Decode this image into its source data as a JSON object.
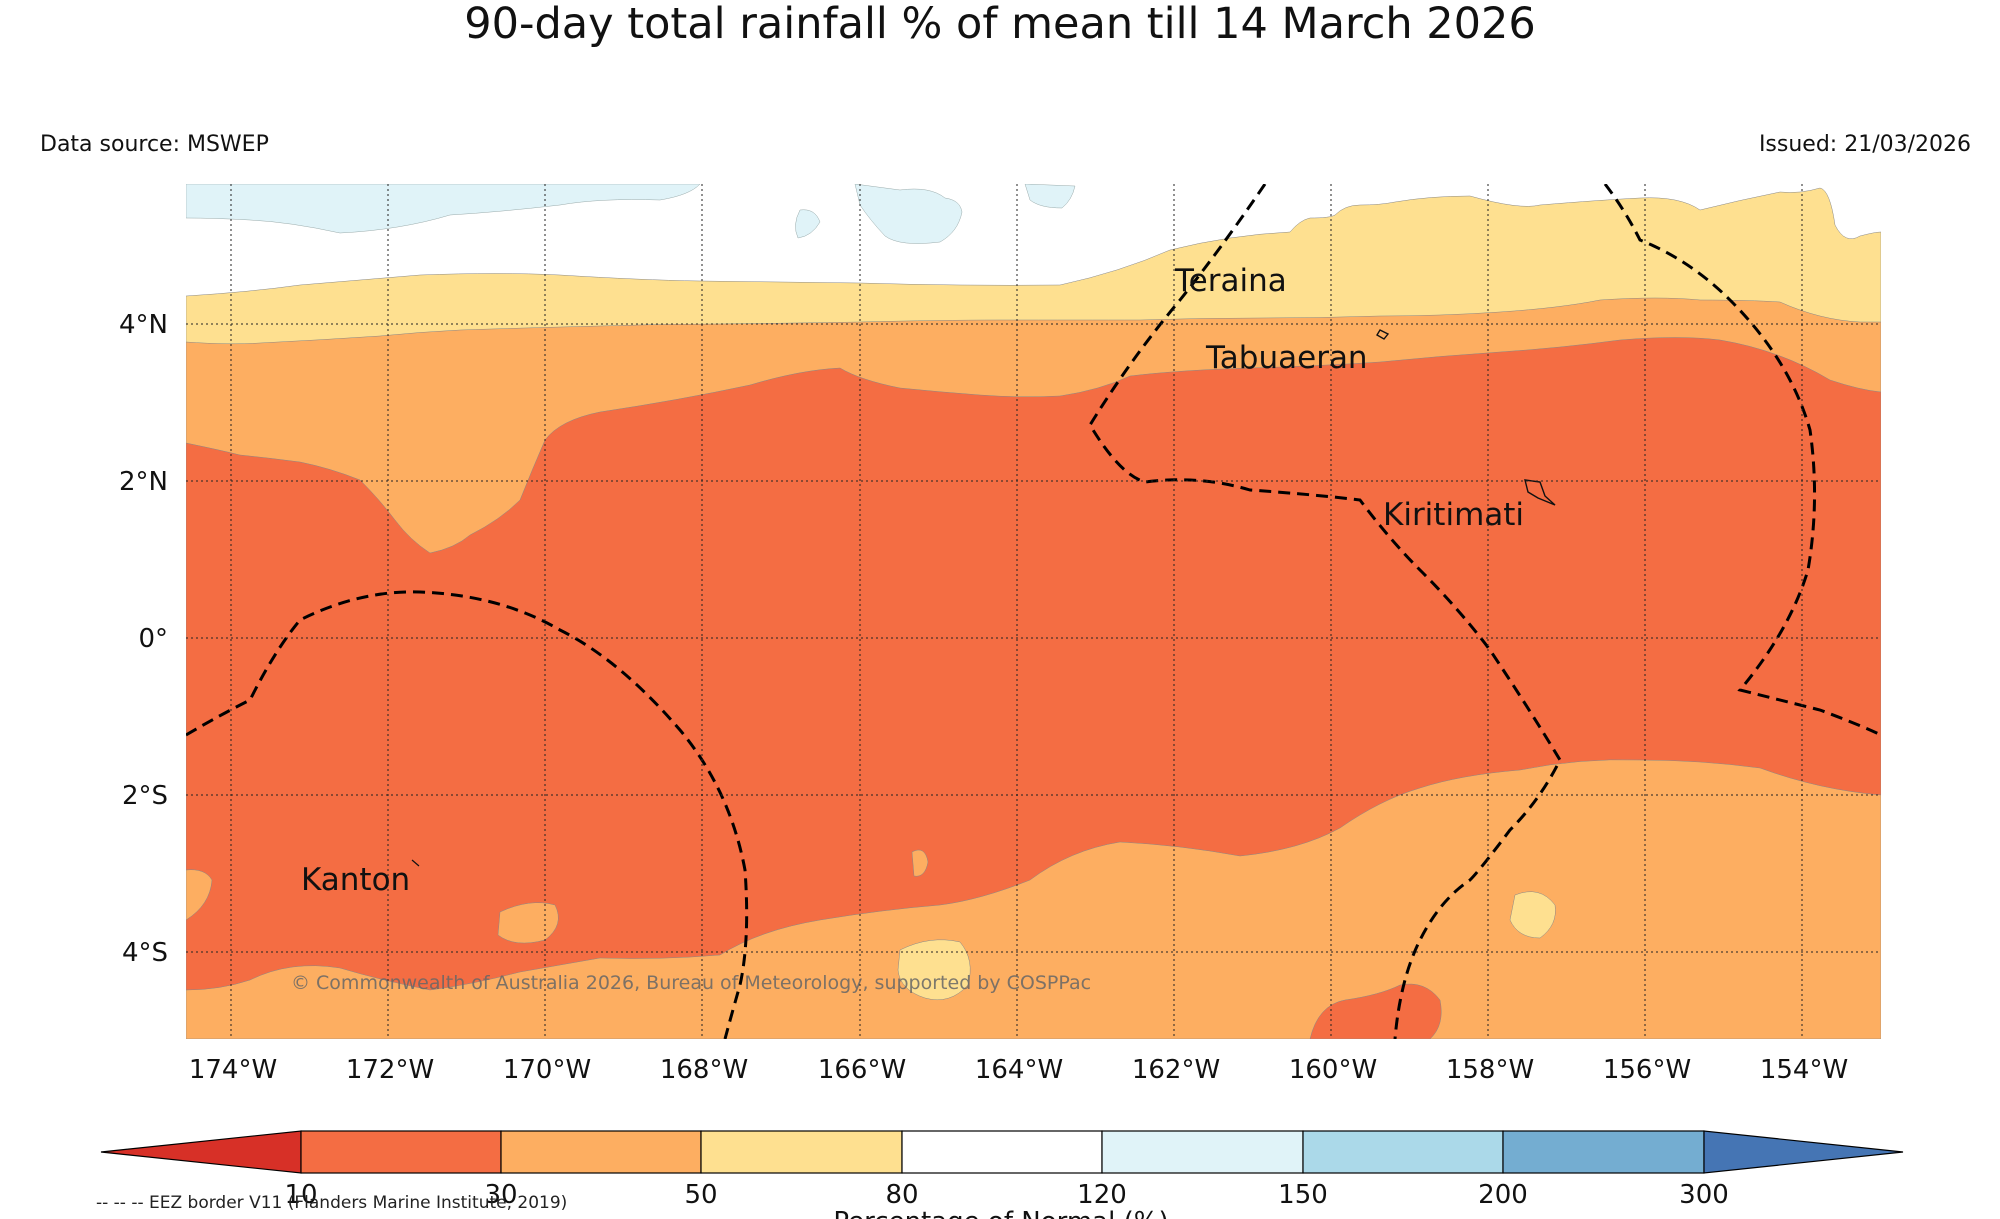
{
  "header": {
    "title": "90-day total rainfall % of mean till 14 March 2026",
    "data_source": "Data source: MSWEP",
    "issued": "Issued: 21/03/2026"
  },
  "map": {
    "longitude_labels": [
      "174°W",
      "172°W",
      "170°W",
      "168°W",
      "166°W",
      "164°W",
      "162°W",
      "160°W",
      "158°W",
      "156°W",
      "154°W"
    ],
    "latitude_labels": [
      "4°N",
      "2°N",
      "0°",
      "2°S",
      "4°S"
    ],
    "places": [
      {
        "name": "Teraina"
      },
      {
        "name": "Tabuaeran"
      },
      {
        "name": "Kiritimati"
      },
      {
        "name": "Kanton"
      }
    ],
    "copyright": "© Commonwealth of Australia 2026, Bureau of Meteorology, supported by COSPPac"
  },
  "legend": {
    "ticks": [
      "10",
      "30",
      "50",
      "80",
      "120",
      "150",
      "200",
      "300"
    ],
    "axis_label": "Percentage of Normal (%)",
    "colors": [
      "#d73027",
      "#f46d43",
      "#fdae61",
      "#fee090",
      "#ffffff",
      "#e0f3f8",
      "#abd9e9",
      "#74add1",
      "#4575b4"
    ],
    "eez_note": "-- -- -- EEZ border V11 (Flanders Marine Institute, 2019)"
  }
}
